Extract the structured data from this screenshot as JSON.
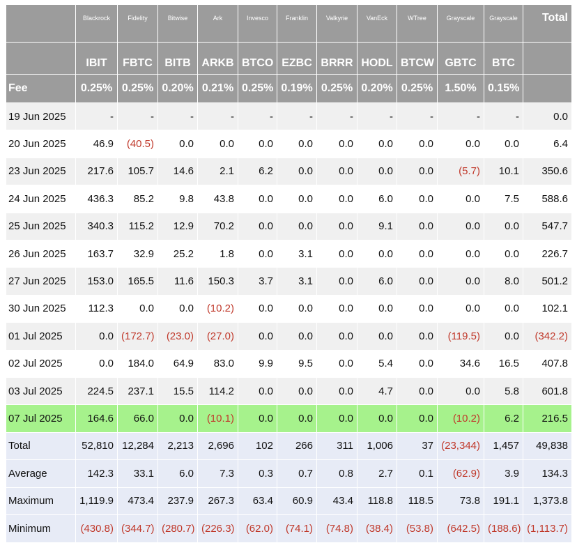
{
  "header": {
    "issuers": [
      "Blackrock",
      "Fidelity",
      "Bitwise",
      "Ark",
      "Invesco",
      "Franklin",
      "Valkyrie",
      "VanEck",
      "WTree",
      "Grayscale",
      "Grayscale"
    ],
    "total": "Total",
    "tickers": [
      "IBIT",
      "FBTC",
      "BITB",
      "ARKB",
      "BTCO",
      "EZBC",
      "BRRR",
      "HODL",
      "BTCW",
      "GBTC",
      "BTC"
    ],
    "fee_label": "Fee",
    "fees": [
      "0.25%",
      "0.25%",
      "0.20%",
      "0.21%",
      "0.25%",
      "0.19%",
      "0.25%",
      "0.20%",
      "0.25%",
      "1.50%",
      "0.15%"
    ]
  },
  "rows": [
    {
      "date": "19 Jun 2025",
      "values": [
        "-",
        "-",
        "-",
        "-",
        "-",
        "-",
        "-",
        "-",
        "-",
        "-",
        "-",
        "0.0"
      ]
    },
    {
      "date": "20 Jun 2025",
      "values": [
        "46.9",
        "(40.5)",
        "0.0",
        "0.0",
        "0.0",
        "0.0",
        "0.0",
        "0.0",
        "0.0",
        "0.0",
        "0.0",
        "6.4"
      ]
    },
    {
      "date": "23 Jun 2025",
      "values": [
        "217.6",
        "105.7",
        "14.6",
        "2.1",
        "6.2",
        "0.0",
        "0.0",
        "0.0",
        "0.0",
        "(5.7)",
        "10.1",
        "350.6"
      ]
    },
    {
      "date": "24 Jun 2025",
      "values": [
        "436.3",
        "85.2",
        "9.8",
        "43.8",
        "0.0",
        "0.0",
        "0.0",
        "6.0",
        "0.0",
        "0.0",
        "7.5",
        "588.6"
      ]
    },
    {
      "date": "25 Jun 2025",
      "values": [
        "340.3",
        "115.2",
        "12.9",
        "70.2",
        "0.0",
        "0.0",
        "0.0",
        "9.1",
        "0.0",
        "0.0",
        "0.0",
        "547.7"
      ]
    },
    {
      "date": "26 Jun 2025",
      "values": [
        "163.7",
        "32.9",
        "25.2",
        "1.8",
        "0.0",
        "3.1",
        "0.0",
        "0.0",
        "0.0",
        "0.0",
        "0.0",
        "226.7"
      ]
    },
    {
      "date": "27 Jun 2025",
      "values": [
        "153.0",
        "165.5",
        "11.6",
        "150.3",
        "3.7",
        "3.1",
        "0.0",
        "6.0",
        "0.0",
        "0.0",
        "8.0",
        "501.2"
      ]
    },
    {
      "date": "30 Jun 2025",
      "values": [
        "112.3",
        "0.0",
        "0.0",
        "(10.2)",
        "0.0",
        "0.0",
        "0.0",
        "0.0",
        "0.0",
        "0.0",
        "0.0",
        "102.1"
      ]
    },
    {
      "date": "01 Jul 2025",
      "values": [
        "0.0",
        "(172.7)",
        "(23.0)",
        "(27.0)",
        "0.0",
        "0.0",
        "0.0",
        "0.0",
        "0.0",
        "(119.5)",
        "0.0",
        "(342.2)"
      ]
    },
    {
      "date": "02 Jul 2025",
      "values": [
        "0.0",
        "184.0",
        "64.9",
        "83.0",
        "9.9",
        "9.5",
        "0.0",
        "5.4",
        "0.0",
        "34.6",
        "16.5",
        "407.8"
      ]
    },
    {
      "date": "03 Jul 2025",
      "values": [
        "224.5",
        "237.1",
        "15.5",
        "114.2",
        "0.0",
        "0.0",
        "0.0",
        "4.7",
        "0.0",
        "0.0",
        "5.8",
        "601.8"
      ]
    },
    {
      "date": "07 Jul 2025",
      "highlight": true,
      "values": [
        "164.6",
        "66.0",
        "0.0",
        "(10.1)",
        "0.0",
        "0.0",
        "0.0",
        "0.0",
        "0.0",
        "(10.2)",
        "6.2",
        "216.5"
      ]
    }
  ],
  "summary": [
    {
      "label": "Total",
      "values": [
        "52,810",
        "12,284",
        "2,213",
        "2,696",
        "102",
        "266",
        "311",
        "1,006",
        "37",
        "(23,344)",
        "1,457",
        "49,838"
      ]
    },
    {
      "label": "Average",
      "values": [
        "142.3",
        "33.1",
        "6.0",
        "7.3",
        "0.3",
        "0.7",
        "0.8",
        "2.7",
        "0.1",
        "(62.9)",
        "3.9",
        "134.3"
      ]
    },
    {
      "label": "Maximum",
      "values": [
        "1,119.9",
        "473.4",
        "237.9",
        "267.3",
        "63.4",
        "60.9",
        "43.4",
        "118.8",
        "118.5",
        "73.8",
        "191.1",
        "1,373.8"
      ]
    },
    {
      "label": "Minimum",
      "values": [
        "(430.8)",
        "(344.7)",
        "(280.7)",
        "(226.3)",
        "(62.0)",
        "(74.1)",
        "(74.8)",
        "(38.4)",
        "(53.8)",
        "(642.5)",
        "(188.6)",
        "(1,113.7)"
      ]
    }
  ]
}
